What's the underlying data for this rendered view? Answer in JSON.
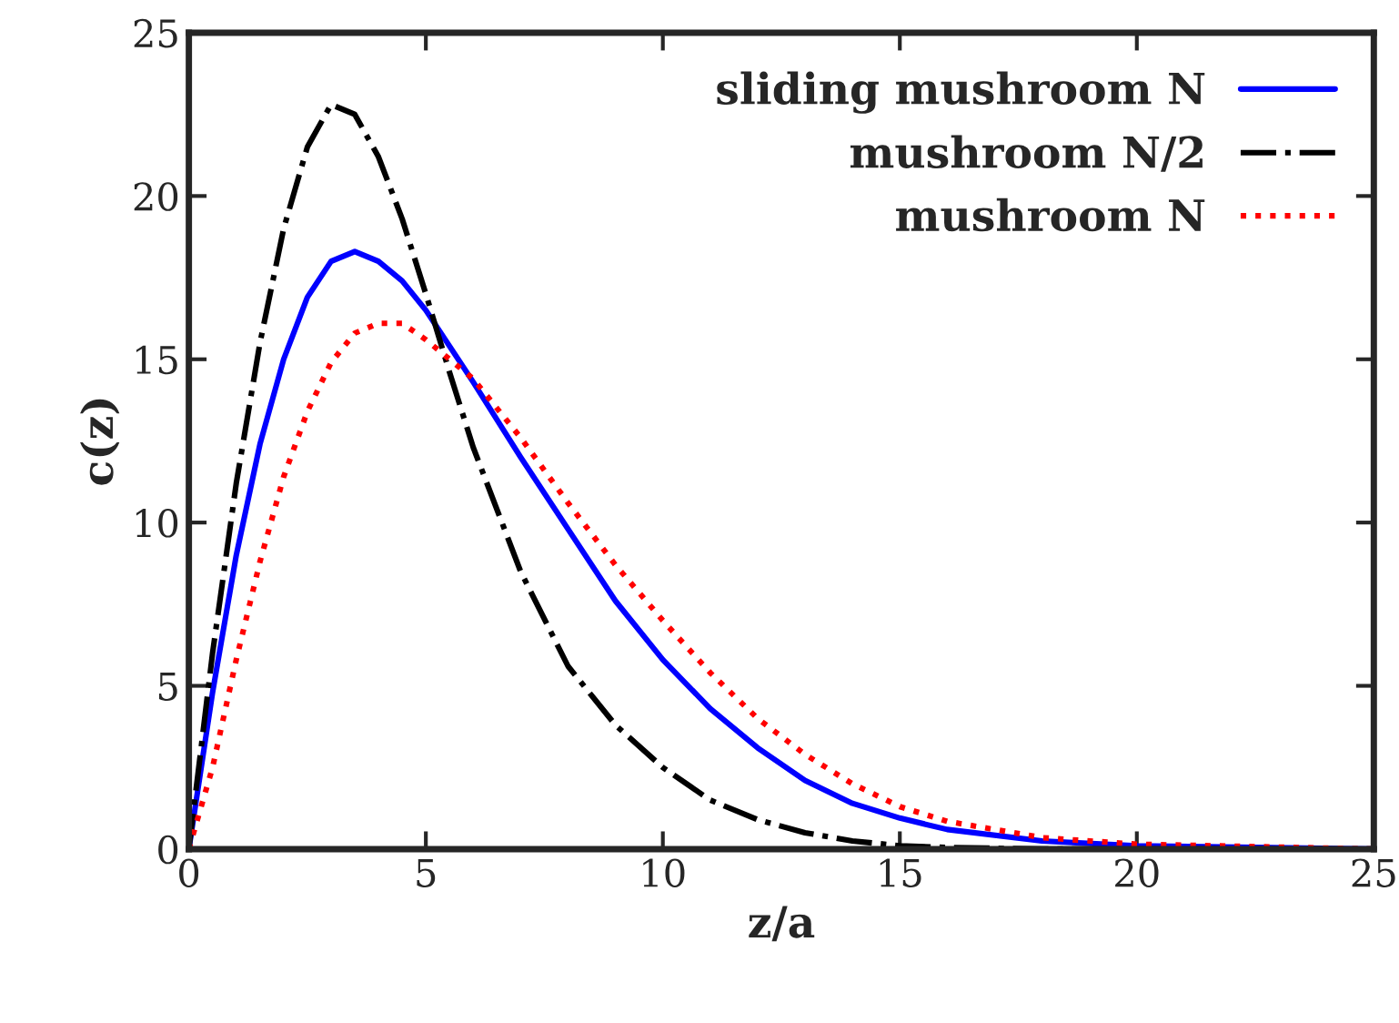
{
  "chart_data": {
    "type": "line",
    "xlabel": "z/a",
    "ylabel": "c(z)",
    "x": [
      0,
      0.5,
      1,
      1.5,
      2,
      2.5,
      3,
      3.5,
      4,
      4.5,
      5,
      5.5,
      6,
      7,
      8,
      9,
      10,
      11,
      12,
      13,
      14,
      15,
      16,
      18,
      20,
      25
    ],
    "xlim": [
      0,
      25
    ],
    "ylim": [
      0,
      25
    ],
    "xticks": [
      0,
      5,
      10,
      15,
      20,
      25
    ],
    "yticks": [
      0,
      5,
      10,
      15,
      20,
      25
    ],
    "grid": false,
    "legend": "top right",
    "marker": "none",
    "series": [
      {
        "name": "sliding mushroom N",
        "color": "#0000ff",
        "line_style": "solid",
        "values": [
          0,
          4.8,
          9,
          12.4,
          15,
          16.9,
          18,
          18.3,
          18,
          17.4,
          16.5,
          15.4,
          14.3,
          12,
          9.8,
          7.6,
          5.8,
          4.3,
          3.1,
          2.1,
          1.4,
          0.95,
          0.6,
          0.25,
          0.1,
          0
        ]
      },
      {
        "name": "mushroom N/2",
        "color": "#000000",
        "line_style": "dashdot",
        "values": [
          0,
          6,
          11.2,
          15.5,
          19,
          21.5,
          22.8,
          22.5,
          21.2,
          19.3,
          17,
          14.6,
          12.3,
          8.5,
          5.6,
          3.8,
          2.5,
          1.5,
          0.9,
          0.5,
          0.25,
          0.1,
          0.05,
          0,
          0,
          0
        ]
      },
      {
        "name": "mushroom N",
        "color": "#ff0000",
        "line_style": "dotted",
        "values": [
          0,
          2.5,
          5.8,
          8.8,
          11.4,
          13.4,
          14.9,
          15.8,
          16.1,
          16.1,
          15.6,
          15,
          14.4,
          12.6,
          10.6,
          8.7,
          7.0,
          5.4,
          4.0,
          2.9,
          2.0,
          1.3,
          0.85,
          0.35,
          0.15,
          0
        ]
      }
    ]
  }
}
